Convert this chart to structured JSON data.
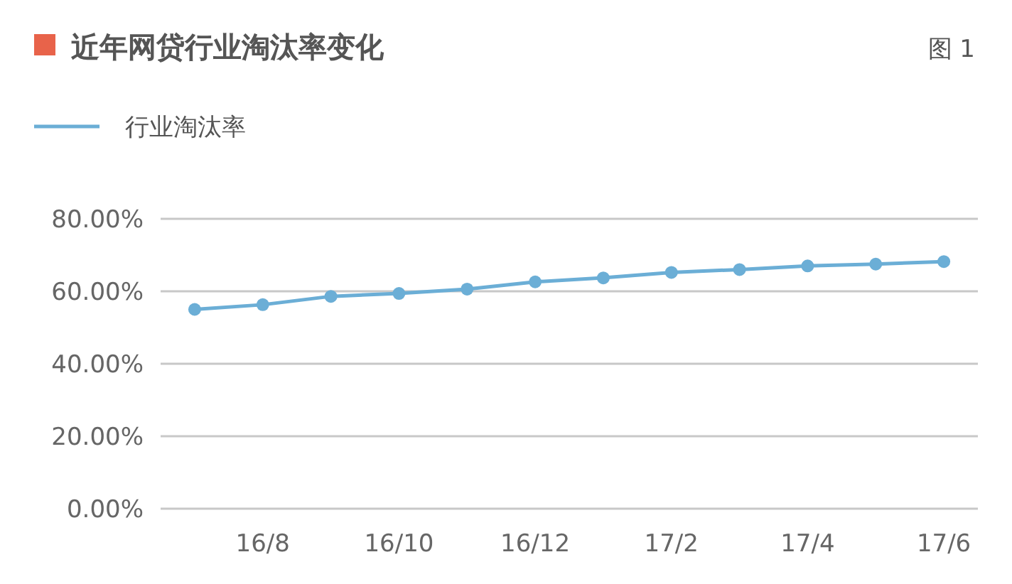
{
  "chart_data": {
    "type": "line",
    "title": "近年网贷行业淘汰率变化",
    "annotations": [
      "图 1"
    ],
    "categories": [
      null,
      "16/8",
      null,
      "16/10",
      null,
      "16/12",
      null,
      "17/2",
      null,
      "17/4",
      null,
      "17/6"
    ],
    "series": [
      {
        "name": "行业淘汰率",
        "color": "#6baed6",
        "values": [
          55.0,
          56.3,
          58.6,
          59.4,
          60.6,
          62.6,
          63.7,
          65.2,
          66.0,
          67.0,
          67.5,
          68.2
        ]
      }
    ],
    "ylim": [
      0,
      80
    ],
    "yticks": [
      {
        "value": 0,
        "label": "0.00%"
      },
      {
        "value": 20,
        "label": "20.00%"
      },
      {
        "value": 40,
        "label": "40.00%"
      },
      {
        "value": 60,
        "label": "60.00%"
      },
      {
        "value": 80,
        "label": "80.00%"
      }
    ],
    "grid": "y",
    "legend": "top left",
    "marker": "circle"
  }
}
